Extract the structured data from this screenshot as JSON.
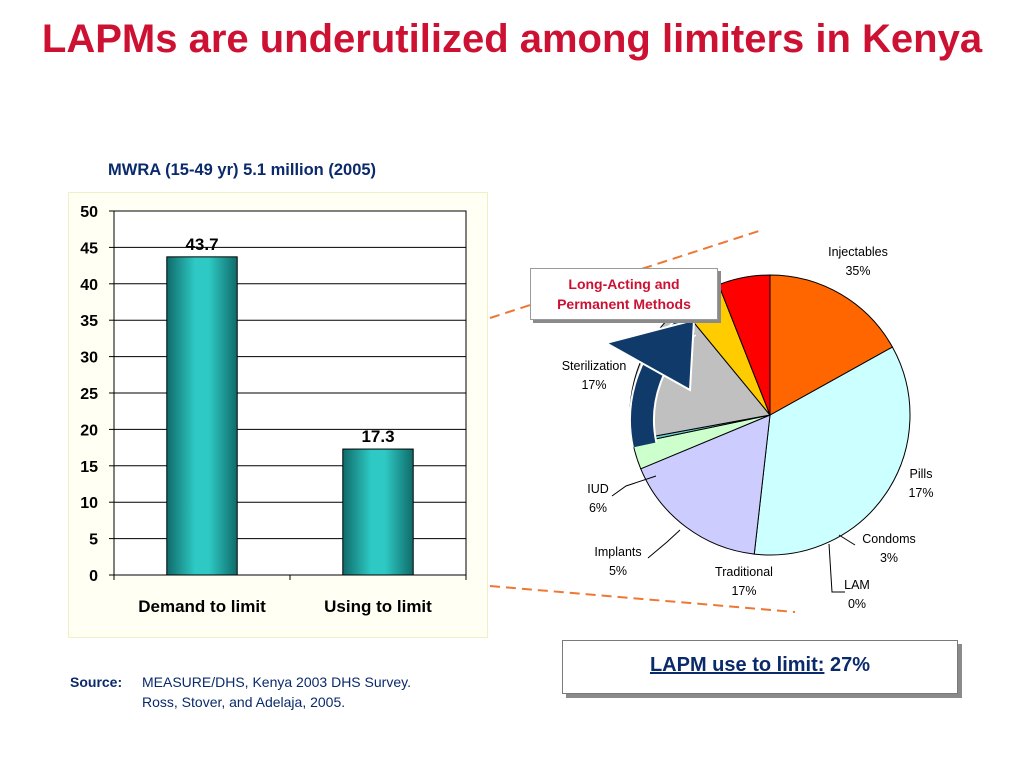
{
  "title": "LAPMs are underutilized among limiters in Kenya",
  "colors": {
    "title": "#cc1133",
    "navy": "#0a2a6c",
    "bar": "#2ec9c4",
    "dash": "#ee7733",
    "arrow": "#0f3a6a"
  },
  "chart_data": [
    {
      "type": "bar",
      "title": "MWRA (15-49 yr) 5.1 million (2005)",
      "categories": [
        "Demand to limit",
        "Using to limit"
      ],
      "values": [
        43.7,
        17.3
      ],
      "data_labels": [
        "43.7",
        "17.3"
      ],
      "ylim": [
        0,
        50
      ],
      "yticks": [
        "0",
        "5",
        "10",
        "15",
        "20",
        "25",
        "30",
        "35",
        "40",
        "45",
        "50"
      ],
      "grid": true
    },
    {
      "type": "pie",
      "slices": [
        {
          "label": "Injectables",
          "pct": "35%",
          "value": 35,
          "color": "#ccffff"
        },
        {
          "label": "Pills",
          "pct": "17%",
          "value": 17,
          "color": "#ccccff"
        },
        {
          "label": "Condoms",
          "pct": "3%",
          "value": 3,
          "color": "#ccffcc"
        },
        {
          "label": "LAM",
          "pct": "0%",
          "value": 0.4,
          "color": "#66cccc"
        },
        {
          "label": "Traditional",
          "pct": "17%",
          "value": 17,
          "color": "#c0c0c0"
        },
        {
          "label": "Implants",
          "pct": "5%",
          "value": 5,
          "color": "#ffcc00"
        },
        {
          "label": "IUD",
          "pct": "6%",
          "value": 6,
          "color": "#ff0000"
        },
        {
          "label": "Sterilization",
          "pct": "17%",
          "value": 17,
          "color": "#ff6600"
        }
      ]
    }
  ],
  "callout": {
    "line1": "Long-Acting and",
    "line2": "Permanent Methods"
  },
  "lapm_box": {
    "label": "LAPM use to limit:",
    "value": "27%"
  },
  "source": {
    "label": "Source:",
    "line1": "MEASURE/DHS, Kenya 2003 DHS Survey.",
    "line2": "Ross, Stover, and Adelaja, 2005."
  }
}
